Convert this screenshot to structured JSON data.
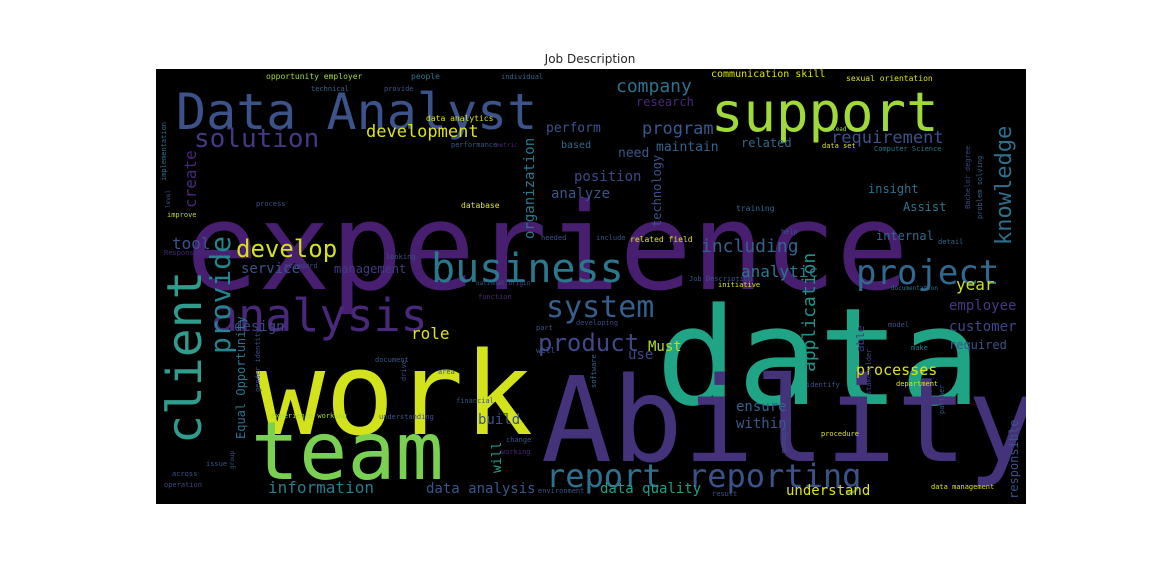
{
  "title": "Job Description",
  "colors": {
    "background": "#000000",
    "title_text": "#262626"
  },
  "words": [
    {
      "text": "experience",
      "color": "#481f70"
    },
    {
      "text": "data",
      "color": "#20a486"
    },
    {
      "text": "work",
      "color": "#d2e21b"
    },
    {
      "text": "Ability",
      "color": "#44337a"
    },
    {
      "text": "team",
      "color": "#7ad151"
    },
    {
      "text": "Data Analyst",
      "color": "#3b528b"
    },
    {
      "text": "support",
      "color": "#a0da39"
    },
    {
      "text": "business",
      "color": "#2a788e"
    },
    {
      "text": "client",
      "color": "#2f9c8d"
    },
    {
      "text": "analysis",
      "color": "#482878"
    },
    {
      "text": "report",
      "color": "#2c728e"
    },
    {
      "text": "reporting",
      "color": "#3b528b"
    },
    {
      "text": "project",
      "color": "#31688e"
    },
    {
      "text": "system",
      "color": "#355f8d"
    },
    {
      "text": "develop",
      "color": "#d5e21a"
    },
    {
      "text": "provide",
      "color": "#25858e"
    },
    {
      "text": "product",
      "color": "#3f4889"
    },
    {
      "text": "solution",
      "color": "#443983"
    },
    {
      "text": "knowledge",
      "color": "#2d708e"
    },
    {
      "text": "development",
      "color": "#dde318"
    },
    {
      "text": "requirement",
      "color": "#3b528b"
    },
    {
      "text": "including",
      "color": "#33638d"
    },
    {
      "text": "company",
      "color": "#2d718e"
    },
    {
      "text": "program",
      "color": "#38598c"
    },
    {
      "text": "application",
      "color": "#20928c"
    },
    {
      "text": "information",
      "color": "#287d8e"
    },
    {
      "text": "role",
      "color": "#dde318"
    },
    {
      "text": "tool",
      "color": "#3b528b"
    },
    {
      "text": "design",
      "color": "#3f4788"
    },
    {
      "text": "processes",
      "color": "#dde318"
    },
    {
      "text": "year",
      "color": "#cae11f"
    },
    {
      "text": "analytic",
      "color": "#29798e"
    },
    {
      "text": "data analysis",
      "color": "#39568c"
    },
    {
      "text": "data quality",
      "color": "#1fa088"
    },
    {
      "text": "understand",
      "color": "#dde318"
    },
    {
      "text": "build",
      "color": "#3b528b"
    },
    {
      "text": "ensure",
      "color": "#33638d"
    },
    {
      "text": "within",
      "color": "#38598c"
    },
    {
      "text": "customer",
      "color": "#3f4788"
    },
    {
      "text": "employee",
      "color": "#443983"
    },
    {
      "text": "required",
      "color": "#3b528b"
    },
    {
      "text": "internal",
      "color": "#31688e"
    },
    {
      "text": "insight",
      "color": "#2c728e"
    },
    {
      "text": "Assist",
      "color": "#2a788e"
    },
    {
      "text": "analyze",
      "color": "#3b528b"
    },
    {
      "text": "position",
      "color": "#3f4788"
    },
    {
      "text": "need",
      "color": "#39568c"
    },
    {
      "text": "perform",
      "color": "#3b528b"
    },
    {
      "text": "maintain",
      "color": "#33638d"
    },
    {
      "text": "related",
      "color": "#31688e"
    },
    {
      "text": "create",
      "color": "#482878"
    },
    {
      "text": "service",
      "color": "#3b528b"
    },
    {
      "text": "management",
      "color": "#443983"
    },
    {
      "text": "Must",
      "color": "#b5de2b"
    },
    {
      "text": "use",
      "color": "#3f4788"
    },
    {
      "text": "will",
      "color": "#1fa088"
    },
    {
      "text": "organization",
      "color": "#2a788e"
    },
    {
      "text": "technology",
      "color": "#3b528b"
    },
    {
      "text": "responsible",
      "color": "#3b528b"
    },
    {
      "text": "Equal Opportunity",
      "color": "#2c728e"
    },
    {
      "text": "communication skill",
      "color": "#dde318"
    },
    {
      "text": "research",
      "color": "#482878"
    },
    {
      "text": "able",
      "color": "#443983"
    },
    {
      "text": "opportunity employer",
      "color": "#a0da39"
    },
    {
      "text": "people",
      "color": "#2a788e"
    },
    {
      "text": "individual",
      "color": "#33638d"
    },
    {
      "text": "sexual orientation",
      "color": "#dde318"
    },
    {
      "text": "technical",
      "color": "#31688e"
    },
    {
      "text": "provide",
      "color": "#39568c"
    },
    {
      "text": "data analytics",
      "color": "#dde318"
    },
    {
      "text": "performance",
      "color": "#39568c"
    },
    {
      "text": "metric",
      "color": "#482878"
    },
    {
      "text": "based",
      "color": "#31688e"
    },
    {
      "text": "lead",
      "color": "#a0da39"
    },
    {
      "text": "data set",
      "color": "#dde318"
    },
    {
      "text": "Computer Science",
      "color": "#2a788e"
    },
    {
      "text": "implementation",
      "color": "#2c728e"
    },
    {
      "text": "level",
      "color": "#3b528b"
    },
    {
      "text": "process",
      "color": "#3b528b"
    },
    {
      "text": "database",
      "color": "#dde318"
    },
    {
      "text": "improve",
      "color": "#b5de2b"
    },
    {
      "text": "training",
      "color": "#31688e"
    },
    {
      "text": "Bachelor degree",
      "color": "#3f4788"
    },
    {
      "text": "problem solving",
      "color": "#33638d"
    },
    {
      "text": "needed",
      "color": "#3b528b"
    },
    {
      "text": "include",
      "color": "#39568c"
    },
    {
      "text": "related field",
      "color": "#dde318"
    },
    {
      "text": "help",
      "color": "#3b528b"
    },
    {
      "text": "detail",
      "color": "#31688e"
    },
    {
      "text": "Responsibilities",
      "color": "#482878"
    },
    {
      "text": "looking",
      "color": "#3b528b"
    },
    {
      "text": "standard",
      "color": "#3f4788"
    },
    {
      "text": "initiative",
      "color": "#dde318"
    },
    {
      "text": "Job Description",
      "color": "#3b528b"
    },
    {
      "text": "documentation",
      "color": "#2c728e"
    },
    {
      "text": "national origin",
      "color": "#3b528b"
    },
    {
      "text": "function",
      "color": "#482878"
    },
    {
      "text": "part",
      "color": "#3b528b"
    },
    {
      "text": "document",
      "color": "#39568c"
    },
    {
      "text": "developing",
      "color": "#3f4788"
    },
    {
      "text": "well",
      "color": "#3b528b"
    },
    {
      "text": "software",
      "color": "#31688e"
    },
    {
      "text": "model",
      "color": "#3b528b"
    },
    {
      "text": "make",
      "color": "#2a788e"
    },
    {
      "text": "identify",
      "color": "#3b528b"
    },
    {
      "text": "department",
      "color": "#dde318"
    },
    {
      "text": "stakeholder",
      "color": "#3f4788"
    },
    {
      "text": "partner",
      "color": "#3b528b"
    },
    {
      "text": "gender identity",
      "color": "#3b528b"
    },
    {
      "text": "drive",
      "color": "#3b528b"
    },
    {
      "text": "area",
      "color": "#39568c"
    },
    {
      "text": "experience working",
      "color": "#a0da39"
    },
    {
      "text": "understanding",
      "color": "#3b528b"
    },
    {
      "text": "financial",
      "color": "#3b528b"
    },
    {
      "text": "change",
      "color": "#3b528b"
    },
    {
      "text": "working",
      "color": "#482878"
    },
    {
      "text": "procedure",
      "color": "#dde318"
    },
    {
      "text": "issue",
      "color": "#3b528b"
    },
    {
      "text": "across",
      "color": "#3b528b"
    },
    {
      "text": "group",
      "color": "#39568c"
    },
    {
      "text": "operation",
      "color": "#3f4788"
    },
    {
      "text": "environment",
      "color": "#3b528b"
    },
    {
      "text": "result",
      "color": "#3b528b"
    },
    {
      "text": "data management",
      "color": "#dde318"
    },
    {
      "text": "manage",
      "color": "#3b528b"
    }
  ]
}
